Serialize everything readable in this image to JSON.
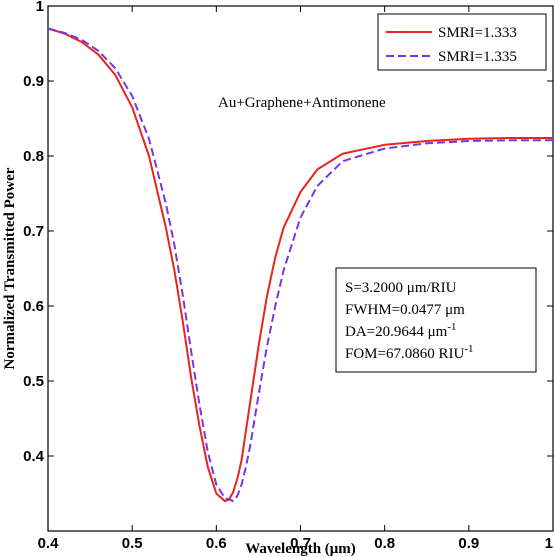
{
  "chart_data": {
    "type": "line",
    "xlabel": "Wavelength (μm)",
    "ylabel": "Normalized Transmitted Power",
    "xlim": [
      0.4,
      1.0
    ],
    "ylim": [
      0.3,
      1.0
    ],
    "x_ticks": [
      "0.4",
      "0.5",
      "0.6",
      "0.7",
      "0.8",
      "0.9",
      "1"
    ],
    "y_ticks": [
      "0.4",
      "0.5",
      "0.6",
      "0.7",
      "0.8",
      "0.9",
      "1"
    ],
    "grid": false,
    "legend_position": "top-right",
    "series": [
      {
        "name": "SMRI=1.333",
        "color": "#e8251c",
        "dash": "solid",
        "x": [
          0.4,
          0.42,
          0.44,
          0.46,
          0.48,
          0.5,
          0.52,
          0.54,
          0.55,
          0.56,
          0.57,
          0.58,
          0.59,
          0.6,
          0.61,
          0.615,
          0.62,
          0.625,
          0.63,
          0.64,
          0.65,
          0.66,
          0.67,
          0.68,
          0.7,
          0.72,
          0.75,
          0.8,
          0.85,
          0.9,
          0.95,
          1.0
        ],
        "y": [
          0.97,
          0.963,
          0.952,
          0.935,
          0.908,
          0.865,
          0.8,
          0.705,
          0.648,
          0.58,
          0.505,
          0.44,
          0.385,
          0.35,
          0.34,
          0.342,
          0.352,
          0.37,
          0.395,
          0.47,
          0.545,
          0.612,
          0.665,
          0.705,
          0.752,
          0.782,
          0.803,
          0.815,
          0.82,
          0.823,
          0.824,
          0.824
        ]
      },
      {
        "name": "SMRI=1.335",
        "color": "#7b35e0",
        "dash": "dashed",
        "x": [
          0.4,
          0.42,
          0.44,
          0.46,
          0.48,
          0.5,
          0.52,
          0.54,
          0.55,
          0.56,
          0.57,
          0.58,
          0.59,
          0.6,
          0.61,
          0.62,
          0.625,
          0.63,
          0.635,
          0.64,
          0.65,
          0.66,
          0.67,
          0.68,
          0.7,
          0.72,
          0.75,
          0.8,
          0.85,
          0.9,
          0.95,
          1.0
        ],
        "y": [
          0.97,
          0.964,
          0.955,
          0.94,
          0.917,
          0.88,
          0.823,
          0.737,
          0.682,
          0.615,
          0.54,
          0.468,
          0.405,
          0.362,
          0.344,
          0.34,
          0.347,
          0.362,
          0.385,
          0.412,
          0.48,
          0.545,
          0.6,
          0.648,
          0.718,
          0.76,
          0.793,
          0.81,
          0.817,
          0.82,
          0.821,
          0.821
        ]
      }
    ],
    "annotation": "Au+Graphene+Antimonene",
    "stats": [
      {
        "label": "S=3.2000 μm/RIU",
        "sup": ""
      },
      {
        "label": "FWHM=0.0477 μm",
        "sup": ""
      },
      {
        "label": "DA=20.9644 μm",
        "sup": "-1"
      },
      {
        "label": "FOM=67.0860 RIU",
        "sup": "-1"
      }
    ]
  }
}
